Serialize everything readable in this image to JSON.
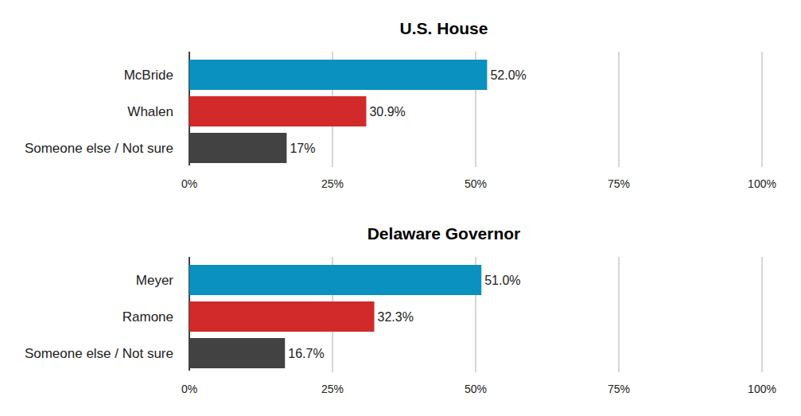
{
  "chart_data": [
    {
      "type": "bar",
      "title": "U.S. House",
      "orientation": "horizontal",
      "categories": [
        "McBride",
        "Whalen",
        "Someone else / Not sure"
      ],
      "values": [
        52.0,
        30.9,
        17
      ],
      "value_labels": [
        "52.0%",
        "30.9%",
        "17%"
      ],
      "colors": [
        "#0a91c0",
        "#d22a2a",
        "#424242"
      ],
      "xlim": [
        0,
        100
      ],
      "xticks": [
        {
          "value": 0,
          "label": "0%"
        },
        {
          "value": 25,
          "label": "25%"
        },
        {
          "value": 50,
          "label": "50%"
        },
        {
          "value": 75,
          "label": "75%"
        },
        {
          "value": 100,
          "label": "100%"
        }
      ],
      "grid": true,
      "data_labels": true
    },
    {
      "type": "bar",
      "title": "Delaware Governor",
      "orientation": "horizontal",
      "categories": [
        "Meyer",
        "Ramone",
        "Someone else / Not sure"
      ],
      "values": [
        51.0,
        32.3,
        16.7
      ],
      "value_labels": [
        "51.0%",
        "32.3%",
        "16.7%"
      ],
      "colors": [
        "#0a91c0",
        "#d22a2a",
        "#424242"
      ],
      "xlim": [
        0,
        100
      ],
      "xticks": [
        {
          "value": 0,
          "label": "0%"
        },
        {
          "value": 25,
          "label": "25%"
        },
        {
          "value": 50,
          "label": "50%"
        },
        {
          "value": 75,
          "label": "75%"
        },
        {
          "value": 100,
          "label": "100%"
        }
      ],
      "grid": true,
      "data_labels": true
    }
  ]
}
